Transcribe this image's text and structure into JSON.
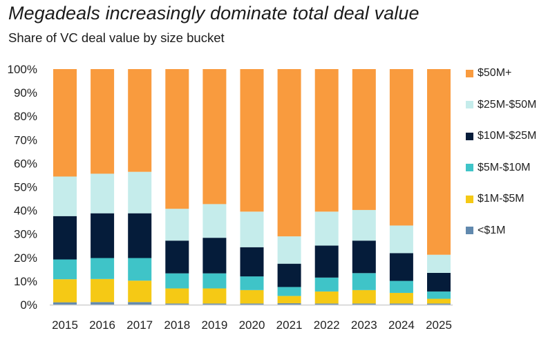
{
  "header": {
    "title": "Megadeals increasingly dominate total deal value",
    "subtitle": "Share of VC deal value by size bucket"
  },
  "chart_data": {
    "type": "bar",
    "stacked": true,
    "title": "Megadeals increasingly dominate total deal value",
    "subtitle": "Share of VC deal value by size bucket",
    "xlabel": "",
    "ylabel": "",
    "ylim": [
      0,
      100
    ],
    "y_ticks": [
      "0%",
      "10%",
      "20%",
      "30%",
      "40%",
      "50%",
      "60%",
      "70%",
      "80%",
      "90%",
      "100%"
    ],
    "grid": false,
    "legend_position": "right",
    "categories": [
      "2015",
      "2016",
      "2017",
      "2018",
      "2019",
      "2020",
      "2021",
      "2022",
      "2023",
      "2024",
      "2025"
    ],
    "series": [
      {
        "name": "<$1M",
        "color": "#6189AE",
        "values": [
          1.0,
          1.1,
          1.1,
          0.5,
          0.5,
          0.5,
          0.6,
          0.5,
          0.5,
          0.5,
          0.5
        ]
      },
      {
        "name": "$1M-$5M",
        "color": "#F5C915",
        "values": [
          9.8,
          9.8,
          9.1,
          6.4,
          6.4,
          5.7,
          3.1,
          5.1,
          5.7,
          4.5,
          2.0
        ]
      },
      {
        "name": "$5M-$10M",
        "color": "#3FC4C8",
        "values": [
          8.4,
          8.9,
          9.6,
          6.4,
          6.4,
          5.8,
          3.8,
          5.9,
          7.2,
          5.1,
          3.1
        ]
      },
      {
        "name": "$10M-$25M",
        "color": "#051C3A",
        "values": [
          18.4,
          19.0,
          19.0,
          13.9,
          15.1,
          12.4,
          9.9,
          13.6,
          13.8,
          11.8,
          7.9
        ]
      },
      {
        "name": "$25M-$50M",
        "color": "#C5ECEB",
        "values": [
          16.8,
          16.8,
          17.6,
          13.5,
          14.3,
          15.1,
          11.6,
          14.4,
          13.0,
          11.7,
          7.7
        ]
      },
      {
        "name": "$50M+",
        "color": "#F99B3E",
        "values": [
          45.6,
          44.4,
          43.6,
          59.3,
          57.3,
          60.5,
          71.0,
          60.5,
          59.8,
          66.4,
          78.8
        ]
      }
    ],
    "legend_order": [
      "$50M+",
      "$25M-$50M",
      "$10M-$25M",
      "$5M-$10M",
      "$1M-$5M",
      "<$1M"
    ]
  }
}
